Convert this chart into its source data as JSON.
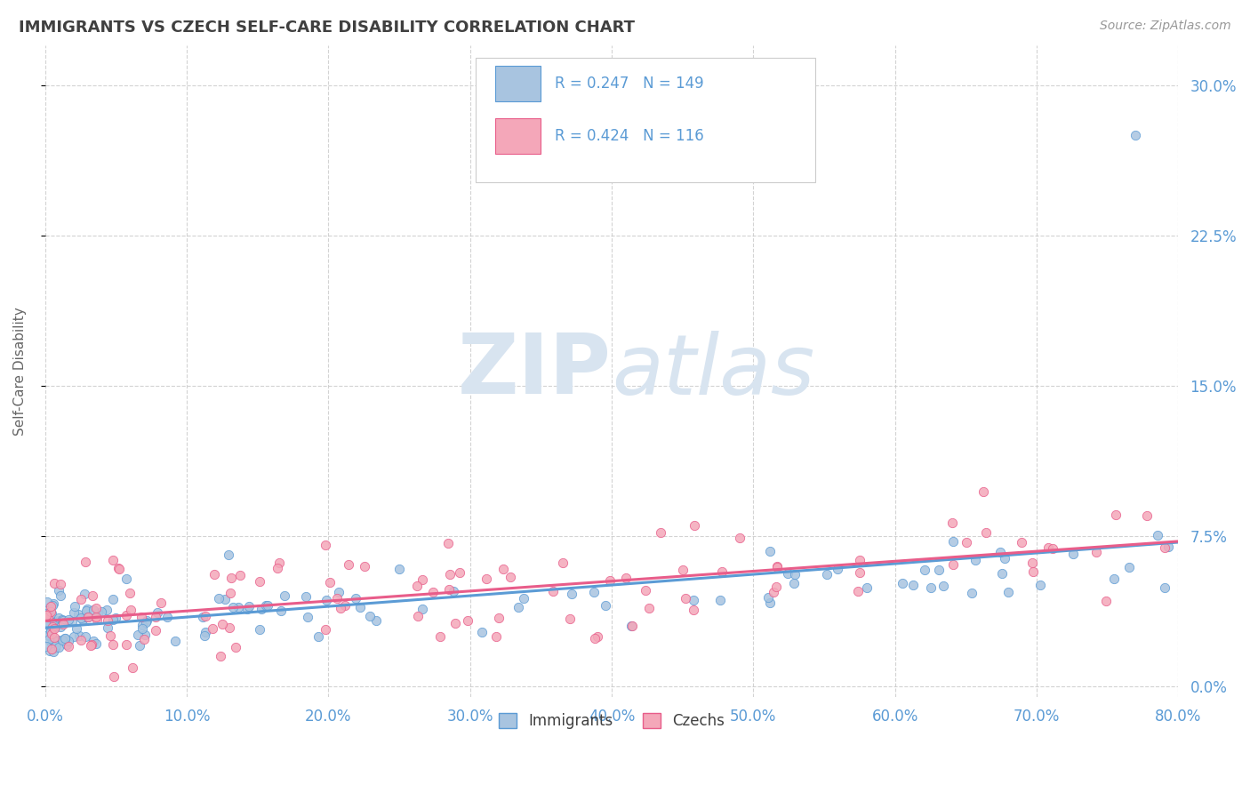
{
  "title": "IMMIGRANTS VS CZECH SELF-CARE DISABILITY CORRELATION CHART",
  "source_text": "Source: ZipAtlas.com",
  "ylabel": "Self-Care Disability",
  "xlim": [
    0.0,
    0.8
  ],
  "ylim": [
    -0.005,
    0.32
  ],
  "yticks": [
    0.0,
    0.075,
    0.15,
    0.225,
    0.3
  ],
  "ytick_labels": [
    "0.0%",
    "7.5%",
    "15.0%",
    "22.5%",
    "30.0%"
  ],
  "xticks": [
    0.0,
    0.1,
    0.2,
    0.3,
    0.4,
    0.5,
    0.6,
    0.7,
    0.8
  ],
  "xtick_labels": [
    "0.0%",
    "10.0%",
    "20.0%",
    "30.0%",
    "40.0%",
    "50.0%",
    "60.0%",
    "70.0%",
    "80.0%"
  ],
  "immigrants_R": 0.247,
  "immigrants_N": 149,
  "czechs_R": 0.424,
  "czechs_N": 116,
  "immigrants_color": "#a8c4e0",
  "czechs_color": "#f4a7b9",
  "immigrants_line_color": "#5b9bd5",
  "czechs_line_color": "#e85d8a",
  "background_color": "#ffffff",
  "grid_color": "#c8c8c8",
  "tick_color": "#5b9bd5",
  "title_color": "#404040",
  "watermark_color": "#d8e4f0",
  "legend_immigrants_label": "Immigrants",
  "legend_czechs_label": "Czechs"
}
